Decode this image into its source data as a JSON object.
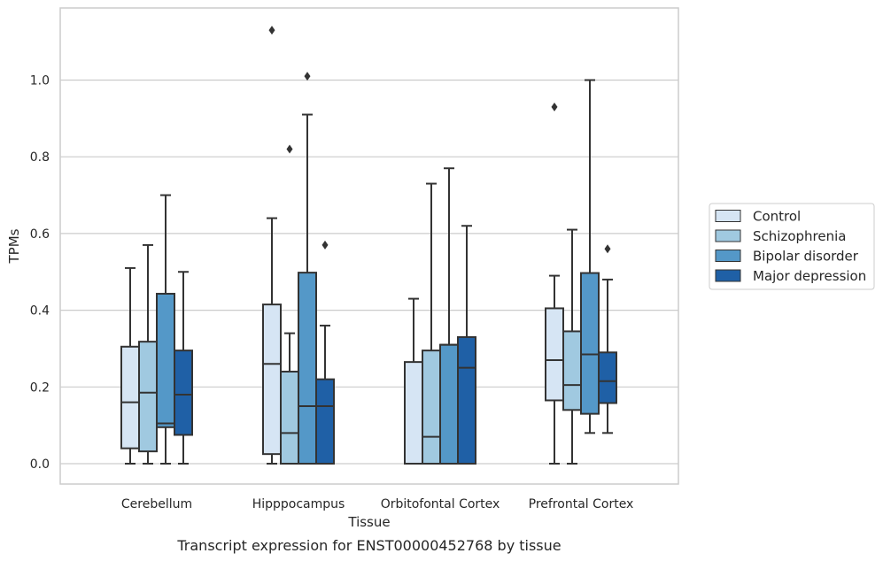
{
  "chart_data": {
    "type": "boxplot",
    "xlabel": "Tissue",
    "ylabel": "TPMs",
    "caption": "Transcript expression for ENST00000452768 by tissue",
    "ylim": [
      -0.055,
      1.2
    ],
    "yticks": [
      0.0,
      0.2,
      0.4,
      0.6,
      0.8,
      1.0
    ],
    "ytick_labels": [
      "0.0",
      "0.2",
      "0.4",
      "0.6",
      "0.8",
      "1.0"
    ],
    "grid": "horizontal",
    "legend_position": "right",
    "categories": [
      "Cerebellum",
      "Hipppocampus",
      "Orbitofontal Cortex",
      "Prefrontal Cortex"
    ],
    "series": [
      {
        "name": "Control",
        "color": "#d6e5f4",
        "boxes": [
          {
            "min": 0.0,
            "q1": 0.04,
            "median": 0.16,
            "q3": 0.305,
            "max": 0.51,
            "outliers": []
          },
          {
            "min": 0.0,
            "q1": 0.025,
            "median": 0.26,
            "q3": 0.415,
            "max": 0.64,
            "outliers": [
              1.13
            ]
          },
          {
            "min": 0.0,
            "q1": 0.0,
            "median": 0.0,
            "q3": 0.265,
            "max": 0.43,
            "outliers": []
          },
          {
            "min": 0.0,
            "q1": 0.165,
            "median": 0.27,
            "q3": 0.405,
            "max": 0.49,
            "outliers": [
              0.93
            ]
          }
        ]
      },
      {
        "name": "Schizophrenia",
        "color": "#a0c9e0",
        "boxes": [
          {
            "min": 0.0,
            "q1": 0.032,
            "median": 0.185,
            "q3": 0.318,
            "max": 0.57,
            "outliers": []
          },
          {
            "min": 0.0,
            "q1": 0.0,
            "median": 0.08,
            "q3": 0.24,
            "max": 0.34,
            "outliers": [
              0.82
            ]
          },
          {
            "min": 0.0,
            "q1": 0.0,
            "median": 0.07,
            "q3": 0.295,
            "max": 0.73,
            "outliers": []
          },
          {
            "min": 0.0,
            "q1": 0.14,
            "median": 0.205,
            "q3": 0.345,
            "max": 0.61,
            "outliers": []
          }
        ]
      },
      {
        "name": "Bipolar disorder",
        "color": "#5498c8",
        "boxes": [
          {
            "min": 0.0,
            "q1": 0.095,
            "median": 0.105,
            "q3": 0.443,
            "max": 0.7,
            "outliers": []
          },
          {
            "min": 0.0,
            "q1": 0.0,
            "median": 0.15,
            "q3": 0.498,
            "max": 0.91,
            "outliers": [
              1.01
            ]
          },
          {
            "min": 0.0,
            "q1": 0.0,
            "median": 0.31,
            "q3": 0.31,
            "max": 0.77,
            "outliers": []
          },
          {
            "min": 0.08,
            "q1": 0.13,
            "median": 0.285,
            "q3": 0.497,
            "max": 1.0,
            "outliers": []
          }
        ]
      },
      {
        "name": "Major depression",
        "color": "#1f60a6",
        "boxes": [
          {
            "min": 0.0,
            "q1": 0.075,
            "median": 0.18,
            "q3": 0.295,
            "max": 0.5,
            "outliers": []
          },
          {
            "min": 0.0,
            "q1": 0.0,
            "median": 0.15,
            "q3": 0.22,
            "max": 0.36,
            "outliers": [
              0.57
            ]
          },
          {
            "min": 0.0,
            "q1": 0.0,
            "median": 0.25,
            "q3": 0.33,
            "max": 0.62,
            "outliers": []
          },
          {
            "min": 0.08,
            "q1": 0.158,
            "median": 0.215,
            "q3": 0.29,
            "max": 0.48,
            "outliers": [
              0.56
            ]
          }
        ]
      }
    ]
  }
}
